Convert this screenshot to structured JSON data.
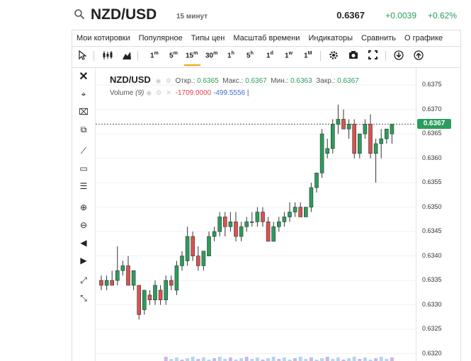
{
  "header": {
    "symbol": "NZD/USD",
    "timeframe": "15 минут",
    "last": "0.6367",
    "change": "+0.0039",
    "change_pct": "+0.62%"
  },
  "menu": [
    "Мои котировки",
    "Популярное",
    "Типы цен",
    "Масштаб времени",
    "Индикаторы",
    "Сравнить",
    "О графике"
  ],
  "toolbar": {
    "intervals": [
      {
        "n": "1",
        "s": "m"
      },
      {
        "n": "5",
        "s": "m"
      },
      {
        "n": "15",
        "s": "m"
      },
      {
        "n": "30",
        "s": "m"
      },
      {
        "n": "1",
        "s": "h"
      },
      {
        "n": "5",
        "s": "h"
      },
      {
        "n": "1",
        "s": "d"
      },
      {
        "n": "1",
        "s": "w"
      },
      {
        "n": "1",
        "s": "M"
      }
    ],
    "active_interval": "15m"
  },
  "legend": {
    "symbol": "NZD/USD",
    "open_label": "Откр.:",
    "open": "0.6365",
    "high_label": "Макс.:",
    "high": "0.6367",
    "low_label": "Мин.:",
    "low": "0.6363",
    "close_label": "Закр.:",
    "close": "0.6367",
    "volume_label": "Volume",
    "volume_param": "(9)",
    "volume_v1": "-1709.0000",
    "volume_v2": "-499.5556"
  },
  "colors": {
    "up": "#2a9d5c",
    "down": "#d9534f",
    "accent": "#f0a30a"
  },
  "chart_data": {
    "type": "candlestick",
    "y_ticks": [
      "0.6375",
      "0.6370",
      "0.6365",
      "0.6360",
      "0.6355",
      "0.6350",
      "0.6345",
      "0.6340",
      "0.6335",
      "0.6330",
      "0.6325",
      "0.6320"
    ],
    "ylim": [
      0.63185,
      0.63785
    ],
    "current": 0.6367,
    "current_label": "0.6367",
    "candles": [
      [
        0.6335,
        0.6336,
        0.6333,
        0.6334
      ],
      [
        0.6334,
        0.6336,
        0.6333,
        0.6335
      ],
      [
        0.6335,
        0.6337,
        0.6334,
        0.6334
      ],
      [
        0.6335,
        0.6342,
        0.6334,
        0.6337
      ],
      [
        0.6337,
        0.6339,
        0.6336,
        0.6338
      ],
      [
        0.6338,
        0.634,
        0.6334,
        0.6334
      ],
      [
        0.6334,
        0.6337,
        0.6333,
        0.6337
      ],
      [
        0.6334,
        0.6334,
        0.6327,
        0.6328
      ],
      [
        0.6329,
        0.6333,
        0.6328,
        0.6333
      ],
      [
        0.6332,
        0.6333,
        0.633,
        0.6331
      ],
      [
        0.6331,
        0.6335,
        0.633,
        0.6334
      ],
      [
        0.6333,
        0.6334,
        0.633,
        0.6331
      ],
      [
        0.6331,
        0.6336,
        0.633,
        0.6335
      ],
      [
        0.6335,
        0.6336,
        0.6333,
        0.6334
      ],
      [
        0.6333,
        0.6339,
        0.6332,
        0.6338
      ],
      [
        0.6338,
        0.6341,
        0.6337,
        0.634
      ],
      [
        0.6339,
        0.6346,
        0.6338,
        0.6344
      ],
      [
        0.6344,
        0.6345,
        0.6339,
        0.634
      ],
      [
        0.634,
        0.6342,
        0.6337,
        0.6338
      ],
      [
        0.6338,
        0.6341,
        0.6337,
        0.6341
      ],
      [
        0.634,
        0.6345,
        0.634,
        0.6344
      ],
      [
        0.6344,
        0.6346,
        0.6343,
        0.6345
      ],
      [
        0.6345,
        0.6349,
        0.6344,
        0.6348
      ],
      [
        0.6348,
        0.6349,
        0.6344,
        0.6346
      ],
      [
        0.6346,
        0.6349,
        0.6345,
        0.6347
      ],
      [
        0.6347,
        0.6349,
        0.6343,
        0.6344
      ],
      [
        0.6344,
        0.6347,
        0.6343,
        0.6346
      ],
      [
        0.6346,
        0.6348,
        0.6345,
        0.6347
      ],
      [
        0.6347,
        0.6349,
        0.6346,
        0.6347
      ],
      [
        0.6347,
        0.635,
        0.6346,
        0.6349
      ],
      [
        0.6349,
        0.635,
        0.6346,
        0.6347
      ],
      [
        0.6347,
        0.6348,
        0.6343,
        0.6343
      ],
      [
        0.6343,
        0.6347,
        0.6343,
        0.6346
      ],
      [
        0.6346,
        0.6348,
        0.6345,
        0.6347
      ],
      [
        0.6347,
        0.6349,
        0.6346,
        0.6348
      ],
      [
        0.6348,
        0.6351,
        0.6347,
        0.6349
      ],
      [
        0.6349,
        0.6351,
        0.6348,
        0.635
      ],
      [
        0.635,
        0.6351,
        0.6348,
        0.6348
      ],
      [
        0.6348,
        0.635,
        0.6348,
        0.635
      ],
      [
        0.635,
        0.6355,
        0.6349,
        0.6354
      ],
      [
        0.6354,
        0.6357,
        0.6353,
        0.6357
      ],
      [
        0.6357,
        0.6366,
        0.6356,
        0.6365
      ],
      [
        0.6361,
        0.6364,
        0.636,
        0.6362
      ],
      [
        0.6362,
        0.6368,
        0.6361,
        0.6367
      ],
      [
        0.6367,
        0.6371,
        0.6365,
        0.6368
      ],
      [
        0.6368,
        0.637,
        0.6366,
        0.6366
      ],
      [
        0.6366,
        0.6368,
        0.6364,
        0.6367
      ],
      [
        0.6367,
        0.6368,
        0.636,
        0.6361
      ],
      [
        0.6361,
        0.6365,
        0.636,
        0.6365
      ],
      [
        0.6365,
        0.6368,
        0.6364,
        0.6367
      ],
      [
        0.6367,
        0.6369,
        0.636,
        0.6361
      ],
      [
        0.6361,
        0.6364,
        0.6355,
        0.6363
      ],
      [
        0.6363,
        0.6366,
        0.636,
        0.6364
      ],
      [
        0.6364,
        0.6366,
        0.6363,
        0.6366
      ],
      [
        0.6365,
        0.6367,
        0.6363,
        0.6367
      ]
    ]
  }
}
